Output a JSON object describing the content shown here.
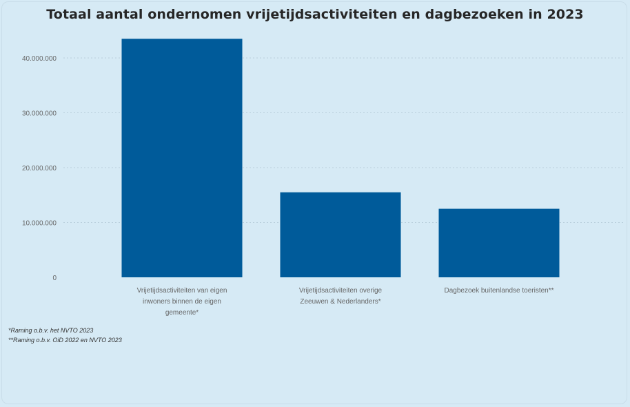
{
  "chart_data": {
    "type": "bar",
    "title": "Totaal aantal ondernomen vrijetijdsactiviteiten en dagbezoeken in 2023",
    "categories": [
      [
        "Vrijetijdsactiviteiten van eigen",
        "inwoners binnen de eigen",
        "gemeente*"
      ],
      [
        "Vrijetijdsactiviteiten overige",
        "Zeeuwen & Nederlanders*"
      ],
      [
        "Dagbezoek buitenlandse toeristen**"
      ]
    ],
    "values": [
      43500000,
      15500000,
      12500000
    ],
    "ylim": [
      0,
      45000000
    ],
    "yticks": [
      0,
      10000000,
      20000000,
      30000000,
      40000000
    ],
    "ytick_labels": [
      "0",
      "10.000.000",
      "20.000.000",
      "30.000.000",
      "40.000.000"
    ],
    "xlabel": "",
    "ylabel": "",
    "grid": true,
    "bar_color": "#005b9a"
  },
  "footnotes": [
    "*Raming o.b.v. het NVTO 2023",
    "**Raming o.b.v. OiD 2022 en NVTO 2023"
  ]
}
